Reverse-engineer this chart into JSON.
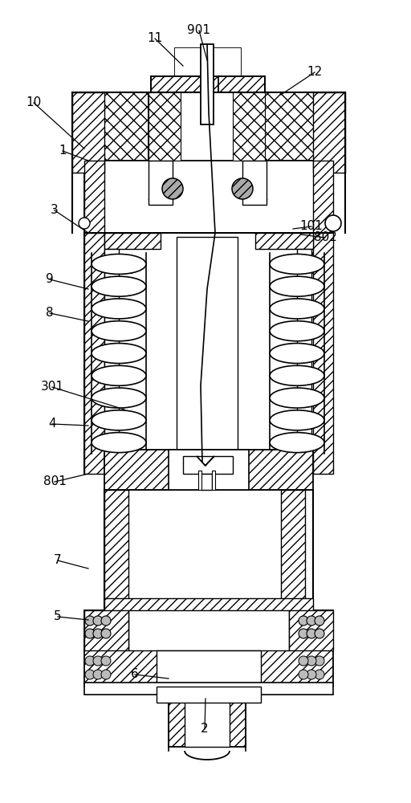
{
  "bg_color": "#ffffff",
  "lc": "#000000",
  "labels_info": [
    [
      "10",
      42,
      128,
      105,
      185
    ],
    [
      "11",
      193,
      48,
      228,
      82
    ],
    [
      "901",
      248,
      38,
      258,
      75
    ],
    [
      "12",
      392,
      90,
      350,
      118
    ],
    [
      "1",
      78,
      188,
      110,
      200
    ],
    [
      "3",
      68,
      262,
      110,
      290
    ],
    [
      "9",
      62,
      348,
      110,
      360
    ],
    [
      "8",
      62,
      390,
      110,
      400
    ],
    [
      "301",
      65,
      482,
      155,
      510
    ],
    [
      "4",
      65,
      528,
      110,
      530
    ],
    [
      "801",
      68,
      600,
      110,
      590
    ],
    [
      "7",
      72,
      698,
      110,
      708
    ],
    [
      "5",
      72,
      768,
      110,
      772
    ],
    [
      "6",
      168,
      840,
      210,
      845
    ],
    [
      "2",
      255,
      908,
      256,
      870
    ],
    [
      "101",
      388,
      282,
      365,
      285
    ],
    [
      "802",
      405,
      296,
      375,
      292
    ]
  ]
}
